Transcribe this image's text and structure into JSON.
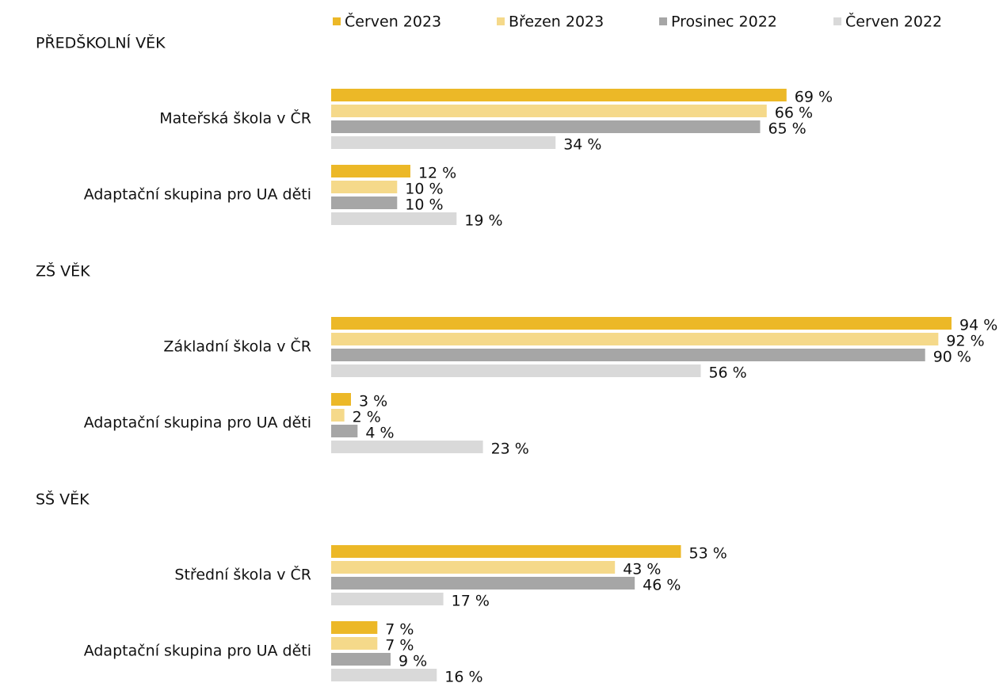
{
  "chart_data": {
    "type": "bar",
    "orientation": "horizontal",
    "xlim": [
      0,
      100
    ],
    "sections": [
      {
        "title": "PŘEDŠKOLNÍ VĚK",
        "categories": [
          "Mateřská škola v ČR",
          "Adaptační skupina pro UA děti"
        ]
      },
      {
        "title": "ZŠ VĚK",
        "categories": [
          "Základní škola v ČR",
          "Adaptační skupina pro UA děti"
        ]
      },
      {
        "title": "SŠ VĚK",
        "categories": [
          "Střední škola v ČR",
          "Adaptační skupina pro UA děti"
        ]
      }
    ],
    "series": [
      {
        "name": "Červen 2023",
        "color": "#ecb827",
        "values": [
          69,
          12,
          94,
          3,
          53,
          7
        ],
        "value_labels": [
          "69 %",
          "12 %",
          "94 %",
          "3 %",
          "53 %",
          "7 %"
        ]
      },
      {
        "name": "Březen 2023",
        "color": "#f5d98a",
        "values": [
          66,
          10,
          92,
          2,
          43,
          7
        ],
        "value_labels": [
          "66 %",
          "10 %",
          "92 %",
          "2 %",
          "43 %",
          "7 %"
        ]
      },
      {
        "name": "Prosinec 2022",
        "color": "#a6a6a6",
        "values": [
          65,
          10,
          90,
          4,
          46,
          9
        ],
        "value_labels": [
          "65 %",
          "10 %",
          "90 %",
          "4 %",
          "46 %",
          "9 %"
        ]
      },
      {
        "name": "Červen 2022",
        "color": "#d9d9d9",
        "values": [
          34,
          19,
          56,
          23,
          17,
          16
        ],
        "value_labels": [
          "34 %",
          "19 %",
          "56 %",
          "23 %",
          "17 %",
          "16 %"
        ]
      }
    ]
  }
}
